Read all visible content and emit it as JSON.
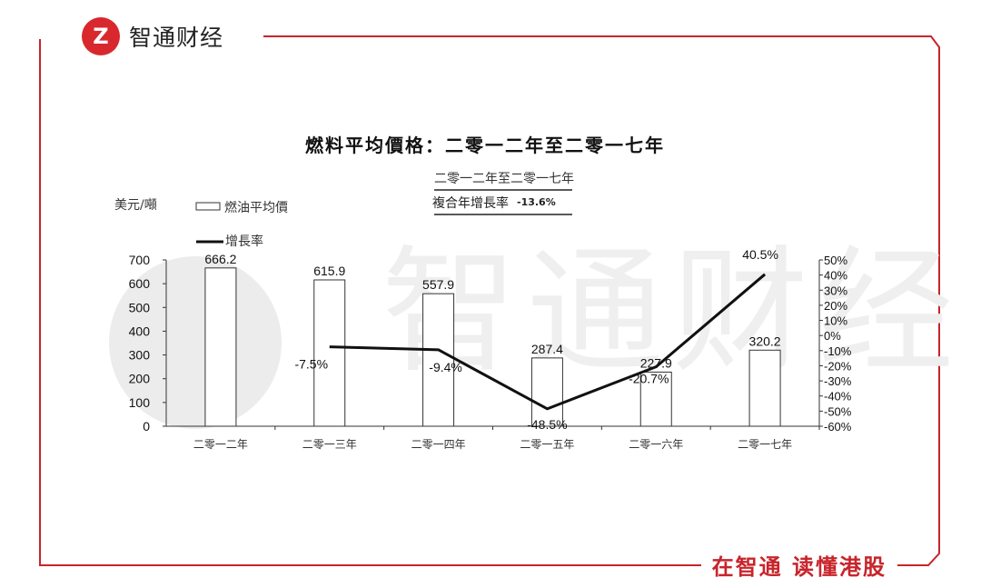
{
  "header": {
    "logo_text": "Z",
    "brand_name": "智通财经"
  },
  "footer": {
    "slogan": "在智通 读懂港股"
  },
  "watermark": {
    "text": "智通财经"
  },
  "chart": {
    "title": "燃料平均價格：二零一二年至二零一七年",
    "cagr_period": "二零一二年至二零一七年",
    "cagr_label": "複合年增長率",
    "cagr_value": "-13.6%",
    "unit": "美元/噸",
    "legend_bar": "燃油平均價",
    "legend_line": "增長率"
  },
  "colors": {
    "brand_red": "#c8242b",
    "bar_stroke": "#333333",
    "line": "#111111"
  },
  "chart_data": {
    "type": "bar",
    "title": "燃料平均價格：二零一二年至二零一七年",
    "categories": [
      "二零一二年",
      "二零一三年",
      "二零一四年",
      "二零一五年",
      "二零一六年",
      "二零一七年"
    ],
    "series": [
      {
        "name": "燃油平均價",
        "type": "bar",
        "axis": "left",
        "values": [
          666.2,
          615.9,
          557.9,
          287.4,
          227.9,
          320.2
        ],
        "labels": [
          "666.2",
          "615.9",
          "557.9",
          "287.4",
          "227.9",
          "320.2"
        ]
      },
      {
        "name": "增長率",
        "type": "line",
        "axis": "right",
        "values": [
          null,
          -7.5,
          -9.4,
          -48.5,
          -20.7,
          40.5
        ],
        "labels": [
          "",
          "-7.5%",
          "-9.4%",
          "-48.5%",
          "-20.7%",
          "40.5%"
        ]
      }
    ],
    "y_left": {
      "min": 0,
      "max": 700,
      "ticks": [
        0,
        100,
        200,
        300,
        400,
        500,
        600,
        700
      ]
    },
    "y_right": {
      "min": -60,
      "max": 50,
      "ticks": [
        -60,
        -50,
        -40,
        -30,
        -20,
        -10,
        0,
        10,
        20,
        30,
        40,
        50
      ],
      "tick_labels": [
        "-60%",
        "-50%",
        "-40%",
        "-30%",
        "-20%",
        "-10%",
        "0%",
        "10%",
        "20%",
        "30%",
        "40%",
        "50%"
      ]
    },
    "legend_position": "top-left",
    "grid": false
  }
}
